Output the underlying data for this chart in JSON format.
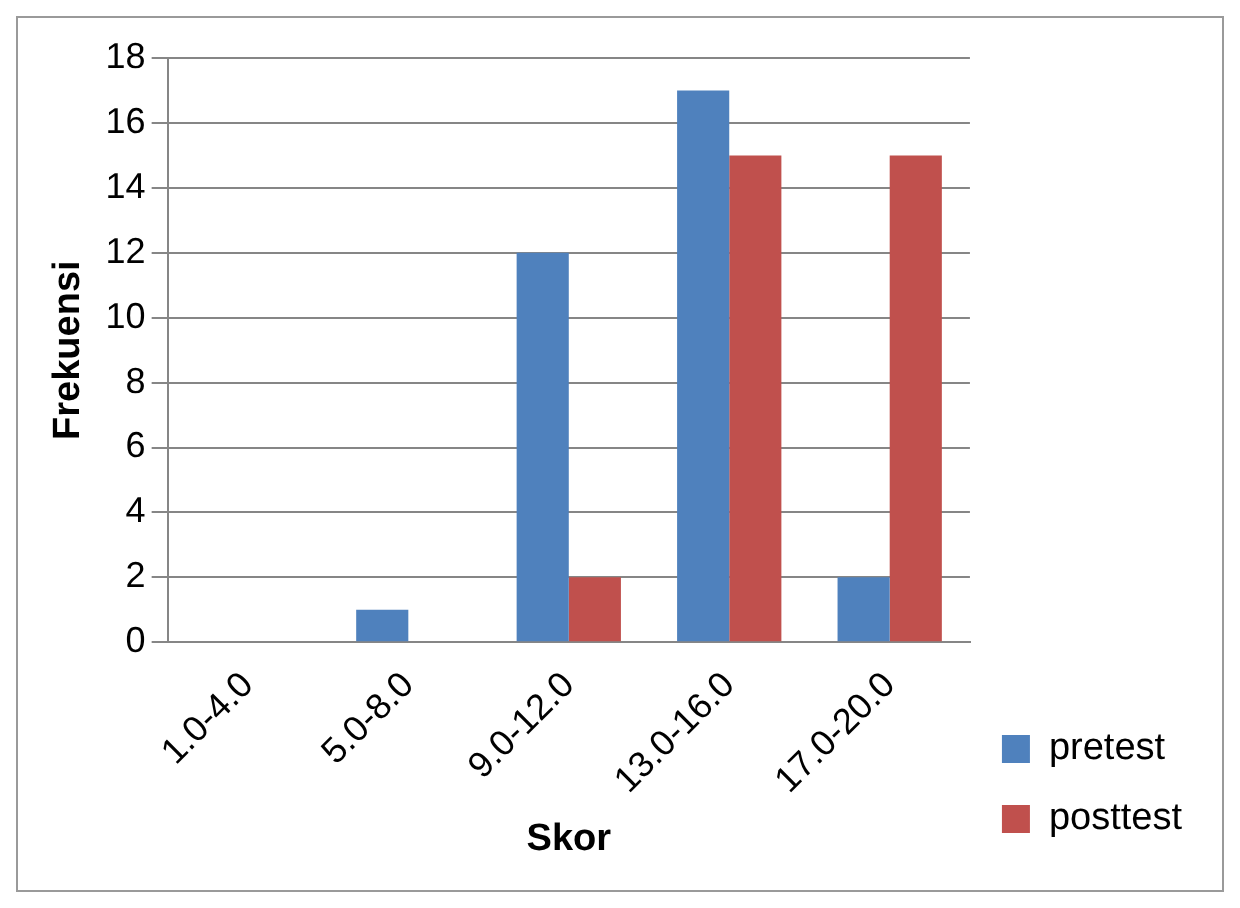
{
  "chart_data": {
    "type": "bar",
    "xlabel": "Skor",
    "ylabel": "Frekuensi",
    "categories": [
      "1.0-4.0",
      "5.0-8.0",
      "9.0-12.0",
      "13.0-16.0",
      "17.0-20.0"
    ],
    "series": [
      {
        "name": "pretest",
        "color": "#4f81bd",
        "values": [
          0,
          1,
          12,
          17,
          2
        ]
      },
      {
        "name": "posttest",
        "color": "#c0504d",
        "values": [
          0,
          0,
          2,
          15,
          15
        ]
      }
    ],
    "ylim": [
      0,
      18
    ],
    "yticks": [
      0,
      2,
      4,
      6,
      8,
      10,
      12,
      14,
      16,
      18
    ],
    "grid": "y",
    "legend": "bottom right"
  }
}
